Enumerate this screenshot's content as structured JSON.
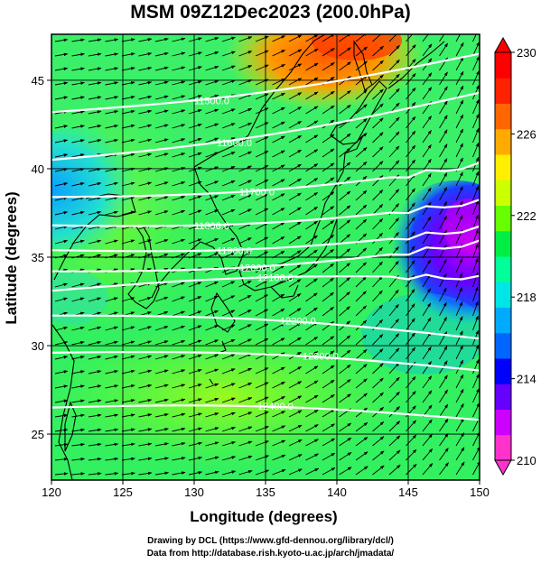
{
  "title": "MSM 09Z12Dec2023 (200.0hPa)",
  "xaxis": {
    "label": "Longitude (degrees)",
    "range": [
      120,
      150
    ],
    "ticks": [
      "120",
      "125",
      "130",
      "135",
      "140",
      "145",
      "150"
    ]
  },
  "yaxis": {
    "label": "Latitude  (degrees)",
    "range": [
      22.4,
      47.6
    ],
    "ticks": [
      "25",
      "30",
      "35",
      "40",
      "45"
    ]
  },
  "colorbar": {
    "range": [
      210,
      230
    ],
    "ticks": [
      "210",
      "214",
      "218",
      "222",
      "226",
      "230"
    ],
    "colors": [
      "#ff33cc",
      "#cc00ff",
      "#6600ff",
      "#0000ff",
      "#0066ff",
      "#00aaff",
      "#00e5e5",
      "#00ff99",
      "#00ee44",
      "#66ff00",
      "#ccff00",
      "#ffee00",
      "#ffaa00",
      "#ff6600",
      "#ff2200",
      "#ff0000"
    ]
  },
  "contours": [
    {
      "label": "11500.0",
      "lat_west": 43.2,
      "lat_east": 46.5
    },
    {
      "label": "11600.0",
      "lat_west": 40.5,
      "lat_east": 44.3
    },
    {
      "label": "11700.0",
      "lat_west": 38.4,
      "lat_east": 40.2
    },
    {
      "label": "11800.0",
      "lat_west": 36.8,
      "lat_east": 38.1
    },
    {
      "label": "11900.0",
      "lat_west": 35.4,
      "lat_east": 36.6
    },
    {
      "label": "12000.0",
      "lat_west": 34.2,
      "lat_east": 35.8
    },
    {
      "label": "12100.0",
      "lat_west": 33.1,
      "lat_east": 33.8
    },
    {
      "label": "12200.0",
      "lat_west": 31.7,
      "lat_east": 30.4
    },
    {
      "label": "12300.0",
      "lat_west": 29.6,
      "lat_east": 28.6
    },
    {
      "label": "12400.0",
      "lat_west": 26.5,
      "lat_east": 25.8
    }
  ],
  "credits": [
    "Drawing by DCL (https://www.gfd-dennou.org/library/dcl/)",
    "Data from http://database.rish.kyoto-u.ac.jp/arch/jmadata/"
  ]
}
